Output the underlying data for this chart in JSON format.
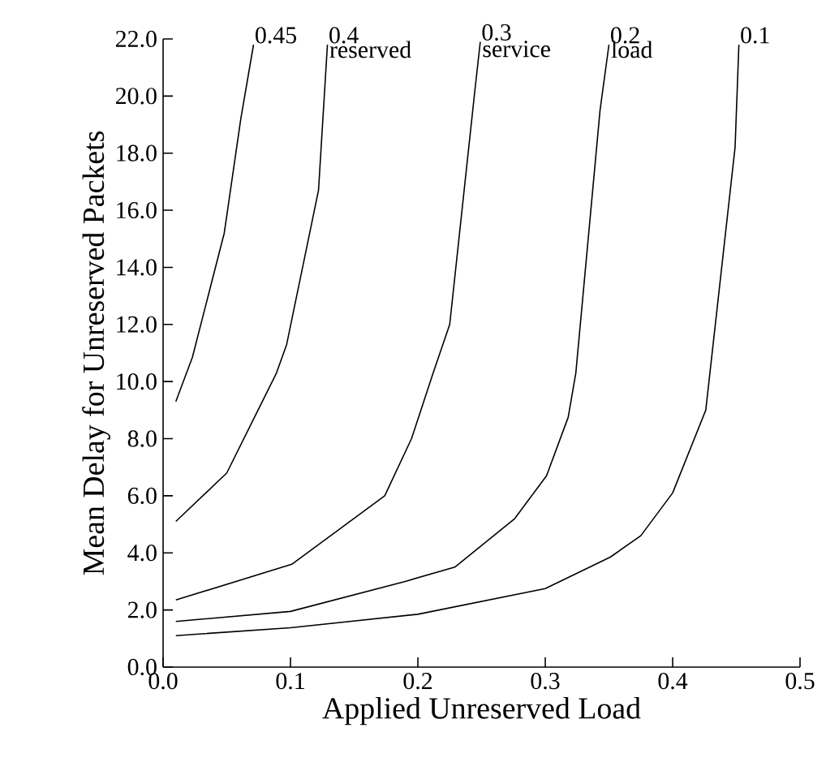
{
  "chart_data": {
    "type": "line",
    "xlabel": "Applied Unreserved Load",
    "ylabel": "Mean Delay for Unreserved Packets",
    "xlim": [
      0,
      0.5
    ],
    "ylim": [
      0,
      22
    ],
    "xticks": [
      {
        "value": 0,
        "label": "0.0"
      },
      {
        "value": 0.1,
        "label": "0.1"
      },
      {
        "value": 0.2,
        "label": "0.2"
      },
      {
        "value": 0.3,
        "label": "0.3"
      },
      {
        "value": 0.4,
        "label": "0.4"
      },
      {
        "value": 0.5,
        "label": "0.5"
      }
    ],
    "yticks": [
      {
        "value": 0,
        "label": "0.0"
      },
      {
        "value": 2,
        "label": "2.0"
      },
      {
        "value": 4,
        "label": "4.0"
      },
      {
        "value": 6,
        "label": "6.0"
      },
      {
        "value": 8,
        "label": "8.0"
      },
      {
        "value": 10,
        "label": "10.0"
      },
      {
        "value": 12,
        "label": "12.0"
      },
      {
        "value": 14,
        "label": "14.0"
      },
      {
        "value": 16,
        "label": "16.0"
      },
      {
        "value": 18,
        "label": "18.0"
      },
      {
        "value": 20,
        "label": "20.0"
      },
      {
        "value": 22,
        "label": "22.0"
      }
    ],
    "grid": false,
    "marker": "none",
    "line_style": "solid",
    "annotations": [
      "reserved",
      "service",
      "load"
    ],
    "series": [
      {
        "name": "0.45",
        "color": "#000000",
        "x": [
          0.01,
          0.023,
          0.048,
          0.061,
          0.071
        ],
        "values": [
          9.3,
          10.85,
          15.2,
          19.2,
          21.8
        ]
      },
      {
        "name": "0.4",
        "color": "#000000",
        "x": [
          0.01,
          0.05,
          0.089,
          0.097,
          0.122,
          0.129
        ],
        "values": [
          5.1,
          6.8,
          10.3,
          11.3,
          16.7,
          21.8
        ]
      },
      {
        "name": "0.3",
        "color": "#000000",
        "x": [
          0.01,
          0.101,
          0.174,
          0.195,
          0.212,
          0.225,
          0.245,
          0.249
        ],
        "values": [
          2.35,
          3.6,
          6.0,
          8.0,
          10.3,
          12.0,
          20.3,
          21.9
        ]
      },
      {
        "name": "0.2",
        "color": "#000000",
        "x": [
          0.01,
          0.1,
          0.19,
          0.229,
          0.276,
          0.301,
          0.318,
          0.324,
          0.343,
          0.35
        ],
        "values": [
          1.6,
          1.95,
          3.0,
          3.5,
          5.2,
          6.7,
          8.75,
          10.3,
          19.5,
          21.8
        ]
      },
      {
        "name": "0.1",
        "color": "#000000",
        "x": [
          0.01,
          0.1,
          0.2,
          0.3,
          0.351,
          0.375,
          0.4,
          0.426,
          0.449,
          0.452
        ],
        "values": [
          1.1,
          1.38,
          1.85,
          2.75,
          3.85,
          4.6,
          6.1,
          9.0,
          18.2,
          21.8
        ]
      }
    ]
  }
}
